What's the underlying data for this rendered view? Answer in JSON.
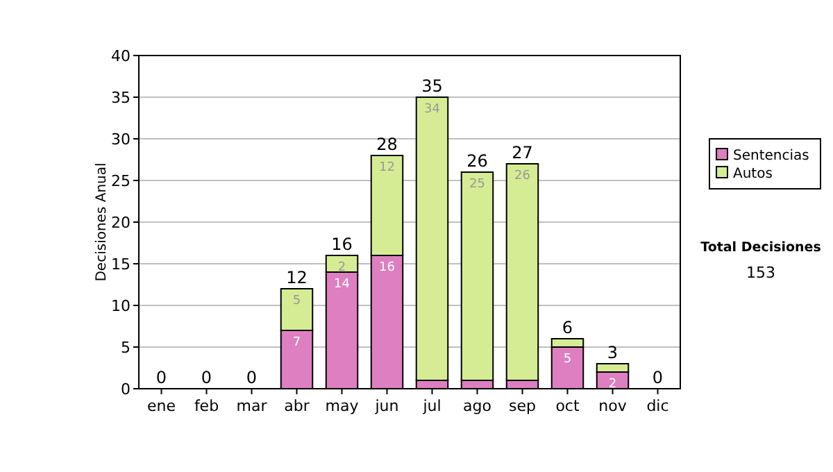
{
  "chart_data": {
    "type": "bar",
    "stacked": true,
    "ylabel": "Decisiones Anual",
    "categories": [
      "ene",
      "feb",
      "mar",
      "abr",
      "may",
      "jun",
      "jul",
      "ago",
      "sep",
      "oct",
      "nov",
      "dic"
    ],
    "series": [
      {
        "name": "Sentencias",
        "color": "#dd7fc0",
        "values": [
          0,
          0,
          0,
          7,
          14,
          16,
          1,
          1,
          1,
          5,
          2,
          0
        ],
        "value_labels": [
          null,
          null,
          null,
          "7",
          "14",
          "16",
          null,
          null,
          null,
          "5",
          "2",
          null
        ]
      },
      {
        "name": "Autos",
        "color": "#d6ec94",
        "values": [
          0,
          0,
          0,
          5,
          2,
          12,
          34,
          25,
          26,
          1,
          1,
          0
        ],
        "value_labels": [
          null,
          null,
          null,
          "5",
          "2",
          "12",
          "34",
          "25",
          "26",
          null,
          null,
          null
        ]
      }
    ],
    "totals": [
      "0",
      "0",
      "0",
      "12",
      "16",
      "28",
      "35",
      "26",
      "27",
      "6",
      "3",
      "0"
    ],
    "ylim": [
      0,
      40
    ],
    "yticks": [
      0,
      5,
      10,
      15,
      20,
      25,
      30,
      35,
      40
    ],
    "grid": "y",
    "legend": "right",
    "annotations": [
      "Total Decisiones",
      "153"
    ]
  }
}
